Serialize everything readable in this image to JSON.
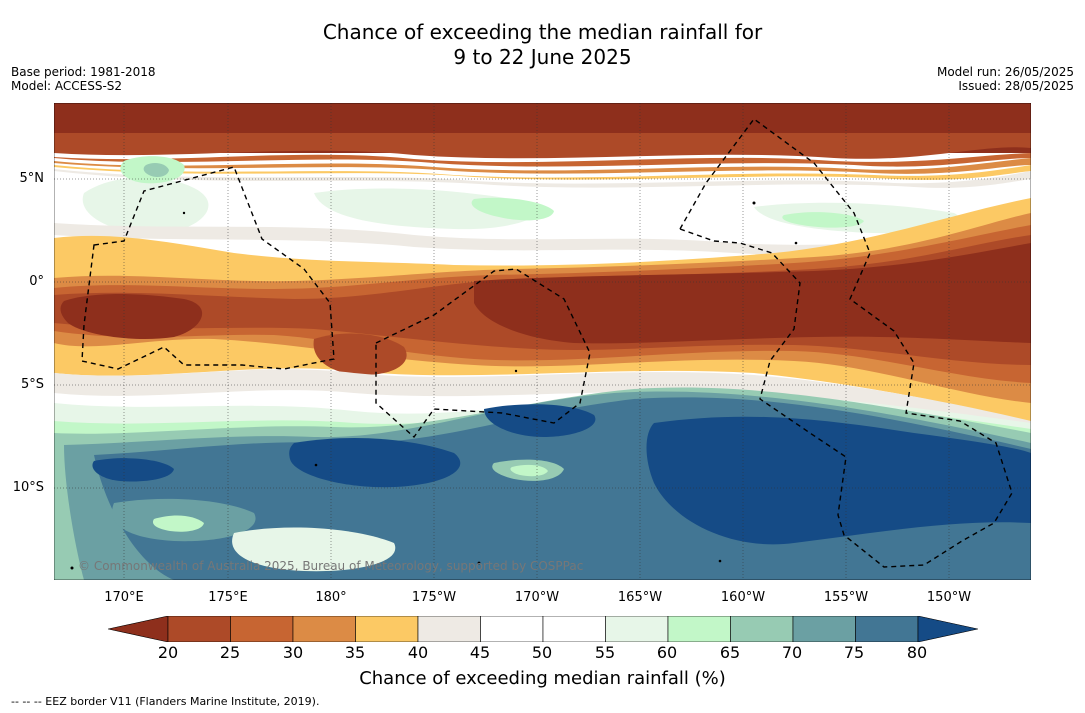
{
  "title_line1": "Chance of exceeding the median rainfall for",
  "title_line2": "9 to 22 June 2025",
  "meta_left": [
    "Base period: 1981-2018",
    "Model: ACCESS-S2"
  ],
  "meta_right": [
    "Model run: 26/05/2025",
    "Issued: 28/05/2025"
  ],
  "lat_labels": [
    "5°N",
    "0°",
    "5°S",
    "10°S"
  ],
  "lon_labels": [
    "170°E",
    "175°E",
    "180°",
    "175°W",
    "170°W",
    "165°W",
    "160°W",
    "155°W",
    "150°W"
  ],
  "copyright": "© Commonwealth of Australia 2025, Bureau of Meteorology, supported by COSPPac",
  "colorbar": {
    "ticks": [
      "20",
      "25",
      "30",
      "35",
      "40",
      "45",
      "50",
      "55",
      "60",
      "65",
      "70",
      "75",
      "80"
    ],
    "colors": [
      "#8e2f1c",
      "#ad4a28",
      "#c76532",
      "#dc8b45",
      "#fcc964",
      "#eeeae4",
      "#ffffff",
      "#ffffff",
      "#e7f6e8",
      "#c2f7c8",
      "#97cbb3",
      "#6ba0a3",
      "#427694",
      "#154b86"
    ],
    "title": "Chance of exceeding median rainfall (%)"
  },
  "footnote": "--  --  -- EEZ border V11 (Flanders Marine Institute, 2019)."
}
